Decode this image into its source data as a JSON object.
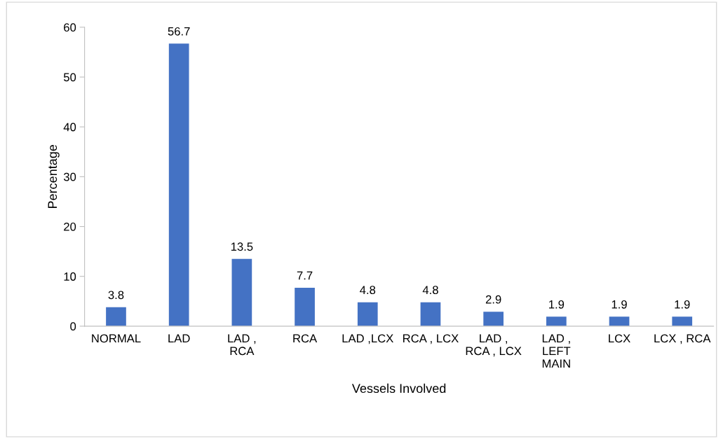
{
  "chart_data": {
    "type": "bar",
    "xlabel": "Vessels Involved",
    "ylabel": "Percentage",
    "categories": [
      "NORMAL",
      "LAD",
      "LAD ,\nRCA",
      "RCA",
      "LAD ,LCX",
      "RCA , LCX",
      "LAD ,\nRCA , LCX",
      "LAD ,\nLEFT\nMAIN",
      "LCX",
      "LCX , RCA"
    ],
    "values": [
      3.8,
      56.7,
      13.5,
      7.7,
      4.8,
      4.8,
      2.9,
      1.9,
      1.9,
      1.9
    ],
    "color": "#4472c4",
    "ylim": [
      0,
      60
    ],
    "yticks": [
      0,
      10,
      20,
      30,
      40,
      50,
      60
    ],
    "grid": false,
    "data_labels": true
  }
}
